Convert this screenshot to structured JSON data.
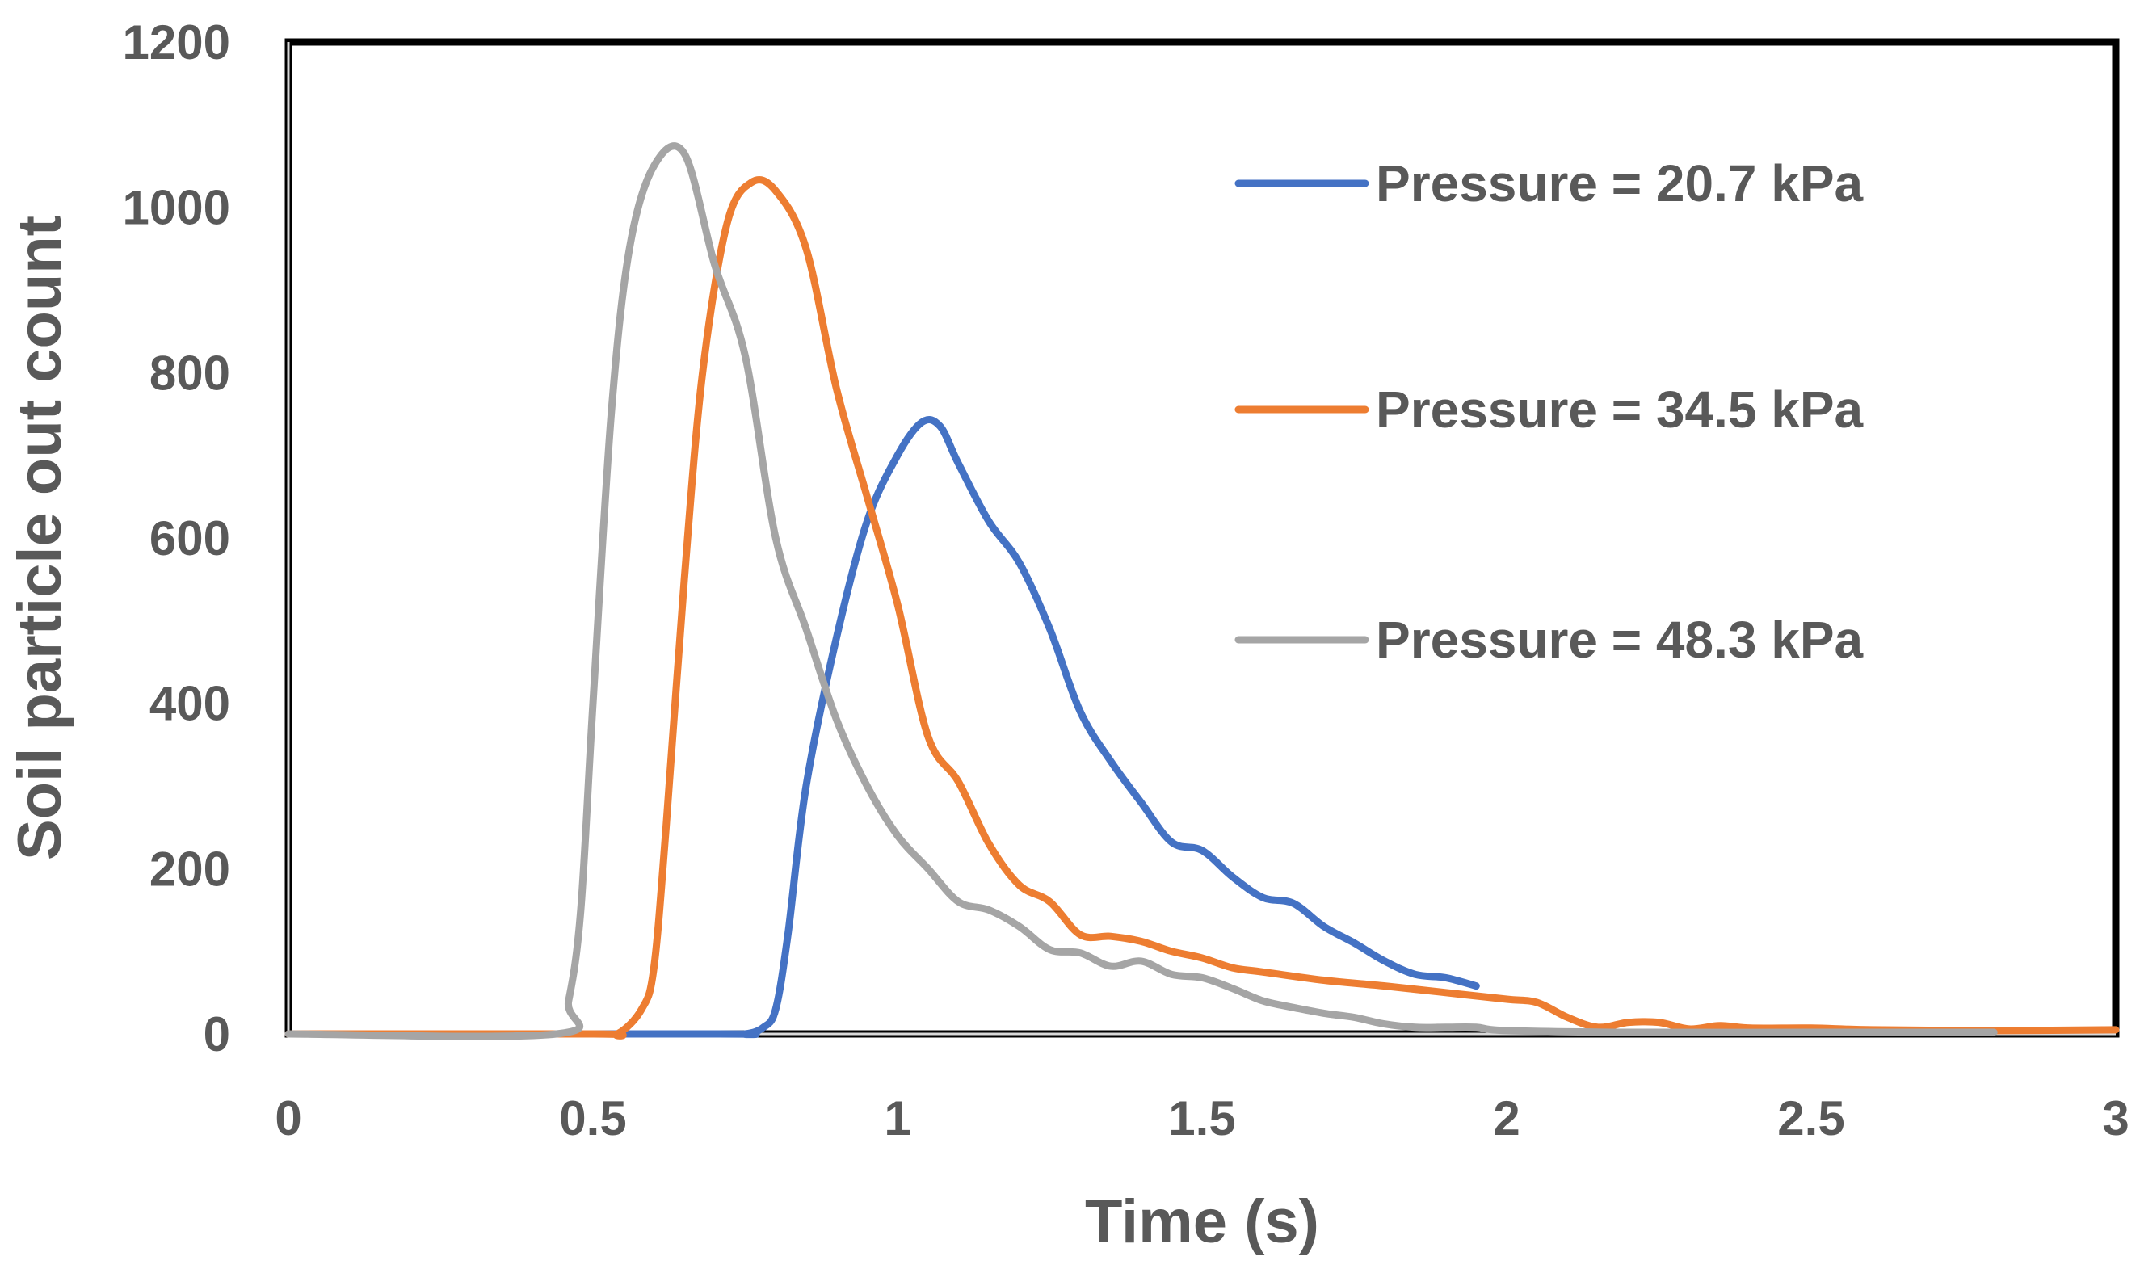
{
  "chart_data": {
    "type": "line",
    "title": "",
    "xlabel": "Time (s)",
    "ylabel": "Soil particle out count",
    "xlim": [
      0,
      3
    ],
    "ylim": [
      0,
      1200
    ],
    "xticks": [
      "0",
      "0.5",
      "1",
      "1.5",
      "2",
      "2.5",
      "3"
    ],
    "yticks": [
      "0",
      "200",
      "400",
      "600",
      "800",
      "1000",
      "1200"
    ],
    "grid": false,
    "legend_position": "top-right",
    "series": [
      {
        "name": "Pressure = 20.7 kPa",
        "color": "#4472C4",
        "points": [
          [
            0,
            0
          ],
          [
            0.7,
            0
          ],
          [
            0.75,
            0
          ],
          [
            0.78,
            8
          ],
          [
            0.8,
            30
          ],
          [
            0.82,
            120
          ],
          [
            0.85,
            300
          ],
          [
            0.9,
            480
          ],
          [
            0.95,
            620
          ],
          [
            1.0,
            700
          ],
          [
            1.04,
            740
          ],
          [
            1.07,
            735
          ],
          [
            1.1,
            690
          ],
          [
            1.15,
            620
          ],
          [
            1.2,
            570
          ],
          [
            1.25,
            490
          ],
          [
            1.3,
            390
          ],
          [
            1.35,
            330
          ],
          [
            1.4,
            280
          ],
          [
            1.45,
            232
          ],
          [
            1.5,
            222
          ],
          [
            1.55,
            190
          ],
          [
            1.6,
            165
          ],
          [
            1.65,
            158
          ],
          [
            1.7,
            130
          ],
          [
            1.75,
            110
          ],
          [
            1.8,
            88
          ],
          [
            1.85,
            72
          ],
          [
            1.9,
            68
          ],
          [
            1.95,
            58
          ]
        ]
      },
      {
        "name": "Pressure = 34.5 kPa",
        "color": "#ED7D31",
        "points": [
          [
            0,
            0
          ],
          [
            0.5,
            0
          ],
          [
            0.54,
            0
          ],
          [
            0.58,
            30
          ],
          [
            0.6,
            80
          ],
          [
            0.62,
            250
          ],
          [
            0.65,
            550
          ],
          [
            0.68,
            800
          ],
          [
            0.72,
            980
          ],
          [
            0.76,
            1030
          ],
          [
            0.8,
            1020
          ],
          [
            0.85,
            950
          ],
          [
            0.9,
            780
          ],
          [
            0.95,
            650
          ],
          [
            1.0,
            520
          ],
          [
            1.05,
            360
          ],
          [
            1.1,
            305
          ],
          [
            1.15,
            230
          ],
          [
            1.2,
            180
          ],
          [
            1.25,
            160
          ],
          [
            1.3,
            120
          ],
          [
            1.35,
            118
          ],
          [
            1.4,
            112
          ],
          [
            1.45,
            100
          ],
          [
            1.5,
            92
          ],
          [
            1.55,
            80
          ],
          [
            1.6,
            75
          ],
          [
            1.7,
            65
          ],
          [
            1.8,
            58
          ],
          [
            1.9,
            50
          ],
          [
            2.0,
            42
          ],
          [
            2.05,
            38
          ],
          [
            2.1,
            20
          ],
          [
            2.15,
            8
          ],
          [
            2.2,
            14
          ],
          [
            2.25,
            14
          ],
          [
            2.3,
            6
          ],
          [
            2.35,
            10
          ],
          [
            2.4,
            7
          ],
          [
            2.5,
            7
          ],
          [
            2.6,
            5
          ],
          [
            2.8,
            4
          ],
          [
            3.0,
            5
          ]
        ]
      },
      {
        "name": "Pressure = 48.3 kPa",
        "color": "#A5A5A5",
        "points": [
          [
            0,
            0
          ],
          [
            0.44,
            0
          ],
          [
            0.46,
            40
          ],
          [
            0.48,
            150
          ],
          [
            0.5,
            400
          ],
          [
            0.53,
            750
          ],
          [
            0.56,
            950
          ],
          [
            0.6,
            1050
          ],
          [
            0.65,
            1065
          ],
          [
            0.7,
            930
          ],
          [
            0.75,
            820
          ],
          [
            0.8,
            600
          ],
          [
            0.85,
            490
          ],
          [
            0.9,
            380
          ],
          [
            0.95,
            300
          ],
          [
            1.0,
            240
          ],
          [
            1.05,
            200
          ],
          [
            1.1,
            160
          ],
          [
            1.15,
            150
          ],
          [
            1.2,
            130
          ],
          [
            1.25,
            102
          ],
          [
            1.3,
            98
          ],
          [
            1.35,
            82
          ],
          [
            1.4,
            88
          ],
          [
            1.45,
            72
          ],
          [
            1.5,
            68
          ],
          [
            1.55,
            55
          ],
          [
            1.6,
            40
          ],
          [
            1.65,
            32
          ],
          [
            1.7,
            25
          ],
          [
            1.75,
            20
          ],
          [
            1.8,
            12
          ],
          [
            1.85,
            8
          ],
          [
            1.9,
            8
          ],
          [
            1.95,
            8
          ],
          [
            2.0,
            4
          ],
          [
            2.2,
            2
          ],
          [
            2.5,
            2
          ],
          [
            2.8,
            2
          ]
        ]
      }
    ]
  }
}
